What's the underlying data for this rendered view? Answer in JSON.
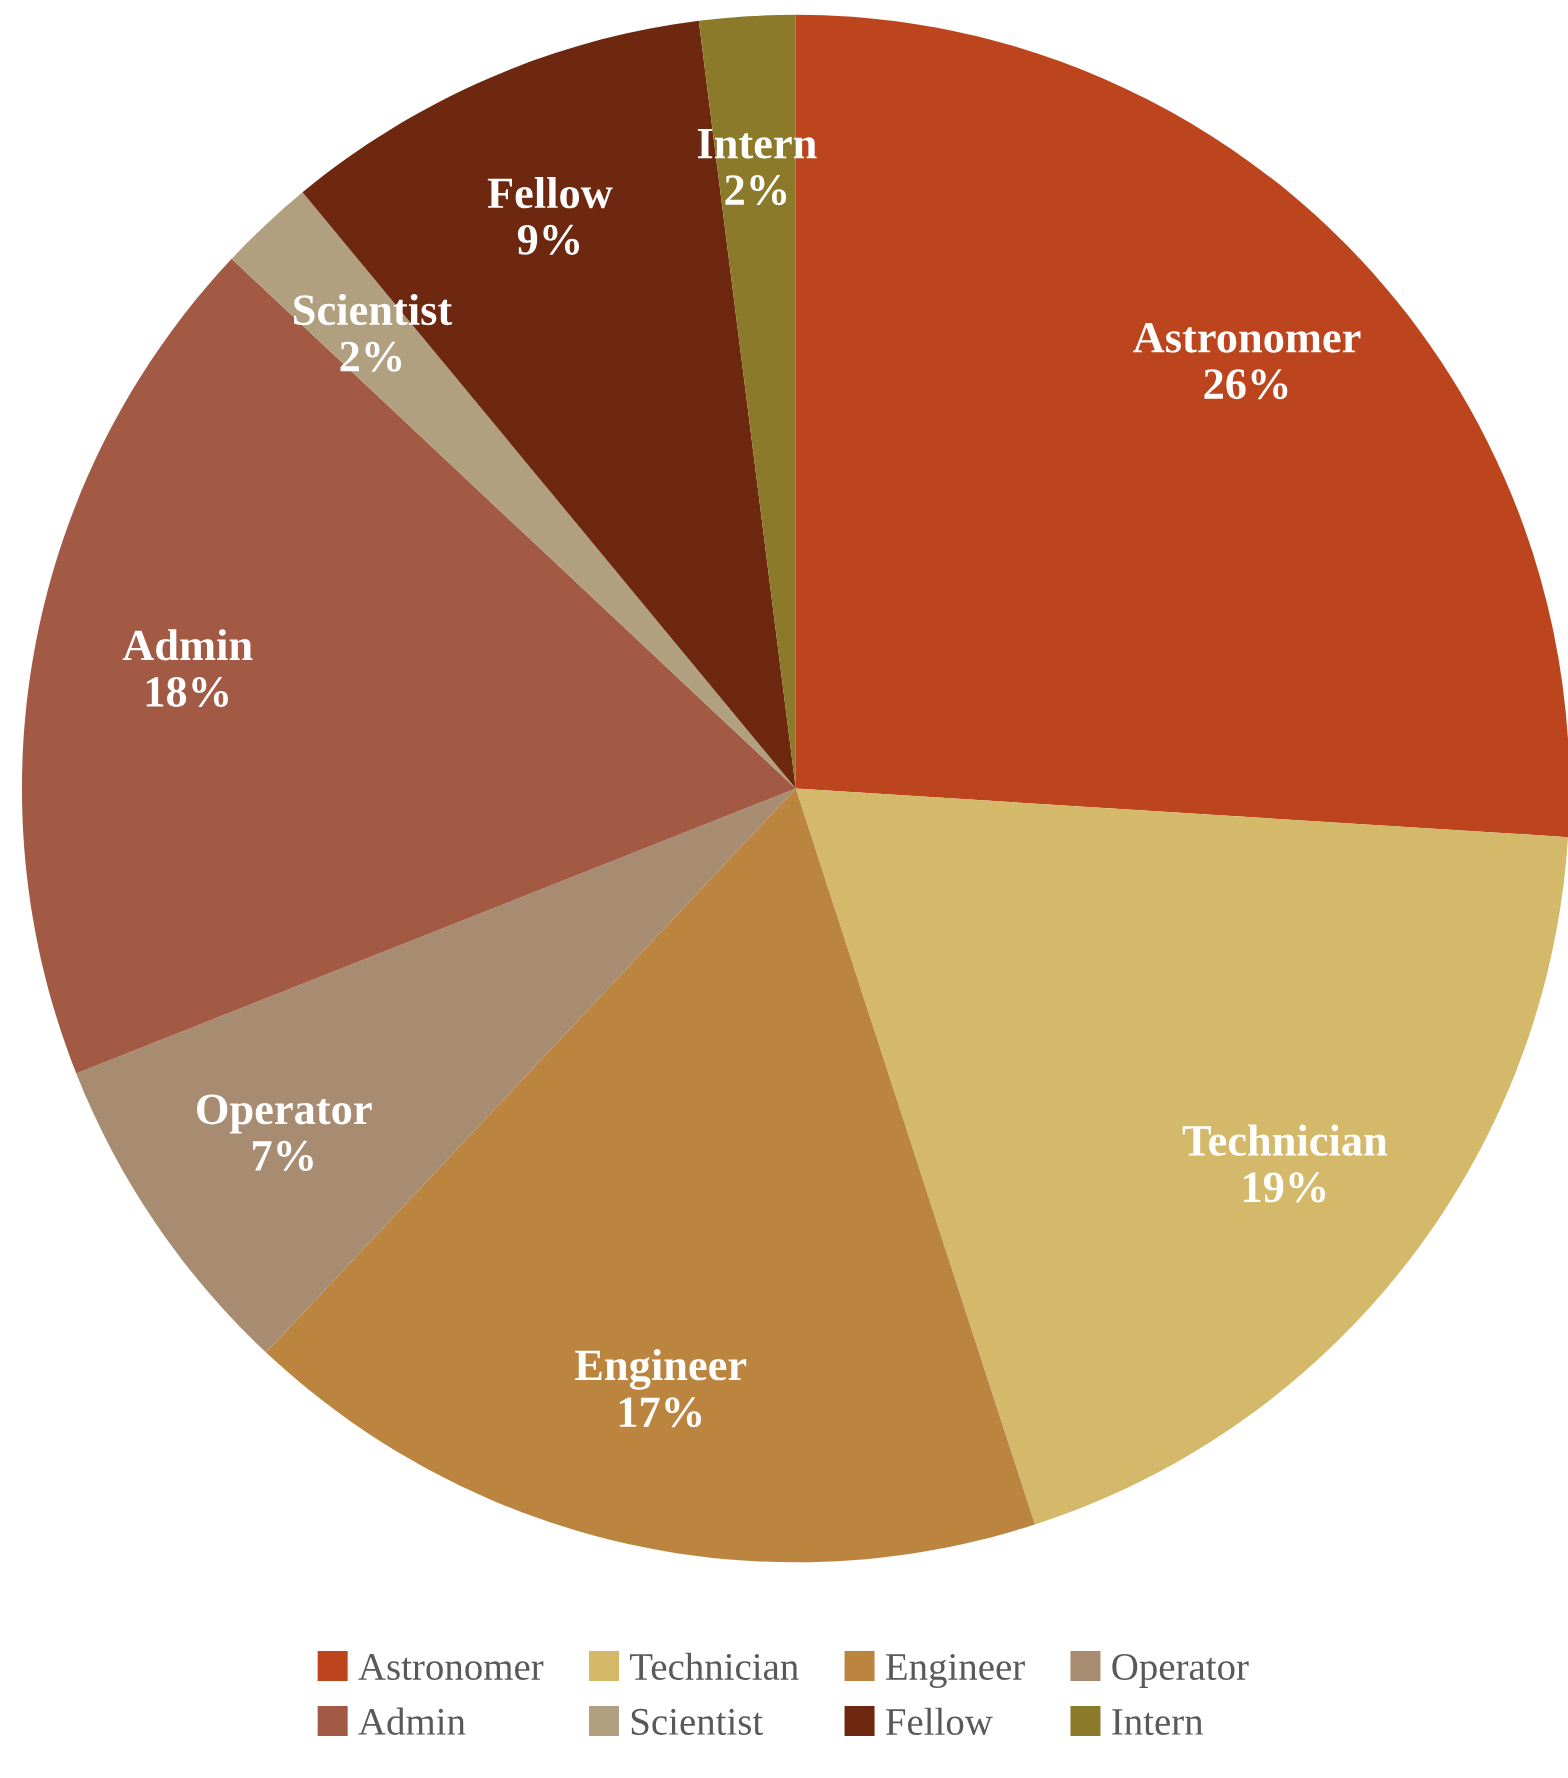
{
  "chart_data": {
    "type": "pie",
    "categories": [
      "Astronomer",
      "Technician",
      "Engineer",
      "Operator",
      "Admin",
      "Scientist",
      "Fellow",
      "Intern"
    ],
    "values": [
      26,
      19,
      17,
      7,
      18,
      2,
      9,
      2
    ],
    "colors": [
      "#bc451d",
      "#d4b96a",
      "#bb8540",
      "#a88c72",
      "#a35a45",
      "#b0a080",
      "#6e2810",
      "#8b7a2a"
    ],
    "value_labels": [
      "26%",
      "19%",
      "17%",
      "7%",
      "18%",
      "2%",
      "9%",
      "2%"
    ],
    "legend": "bottom"
  }
}
